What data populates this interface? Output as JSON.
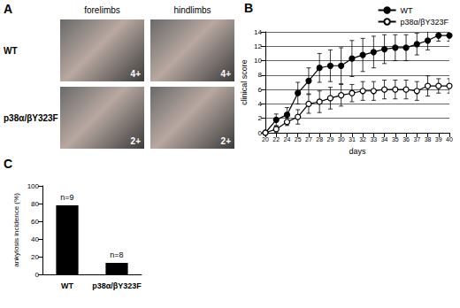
{
  "photo_panel": {
    "panel_label": "A",
    "columns": [
      "forelimbs",
      "hindlimbs"
    ],
    "rows": [
      {
        "label": "WT",
        "scores": [
          "4+",
          "4+"
        ]
      },
      {
        "label": "p38α/βY323F",
        "scores": [
          "2+",
          "2+"
        ]
      }
    ]
  },
  "chart_data": [
    {
      "panel_label": "B",
      "type": "line",
      "x_label": "days",
      "y_label": "clinical score",
      "categories": [
        "20",
        "22",
        "24",
        "25",
        "27",
        "28",
        "29",
        "30",
        "31",
        "32",
        "33",
        "34",
        "35",
        "36",
        "37",
        "38",
        "39",
        "40"
      ],
      "series": [
        {
          "name": "WT",
          "color": "#000000",
          "marker": "filled circle",
          "values": [
            0,
            1.8,
            2.5,
            5.5,
            7.2,
            9,
            9.3,
            9.3,
            10.3,
            10.8,
            11.2,
            11.6,
            11.8,
            11.8,
            12.3,
            12.8,
            13.5,
            13.5
          ],
          "errors": [
            0,
            0.8,
            1.0,
            1.5,
            1.8,
            2.0,
            2.2,
            2.5,
            2.5,
            2.3,
            2.2,
            2.0,
            1.8,
            1.8,
            1.5,
            1.3,
            0.8,
            0.8
          ]
        },
        {
          "name": "p38α/βY323F",
          "color": "#000000",
          "marker": "open circle",
          "values": [
            0,
            0.5,
            1.5,
            2.2,
            4,
            4.3,
            4.8,
            5.2,
            5.5,
            5.8,
            5.8,
            6,
            6,
            6,
            5.8,
            6.5,
            6.5,
            6.5
          ],
          "errors": [
            0,
            0.4,
            0.5,
            1.0,
            1.3,
            1.5,
            1.5,
            1.5,
            1.2,
            1.3,
            1.3,
            1.3,
            1.3,
            1.3,
            1.3,
            1.4,
            1.0,
            1.0
          ]
        }
      ],
      "ylim": [
        0,
        14
      ],
      "yticks": [
        0,
        2,
        4,
        6,
        8,
        10,
        12,
        14
      ],
      "grid": true,
      "legend": "top right"
    },
    {
      "panel_label": "C",
      "type": "bar",
      "y_label": "ankylosis incidence (%)",
      "categories": [
        "WT",
        "p38α/βY323F"
      ],
      "values": [
        78,
        13
      ],
      "annotations": [
        "n=9",
        "n=8"
      ],
      "color": "#000000",
      "ylim": [
        0,
        100
      ],
      "yticks": [
        0,
        20,
        40,
        60,
        80,
        100
      ],
      "grid": false
    }
  ]
}
